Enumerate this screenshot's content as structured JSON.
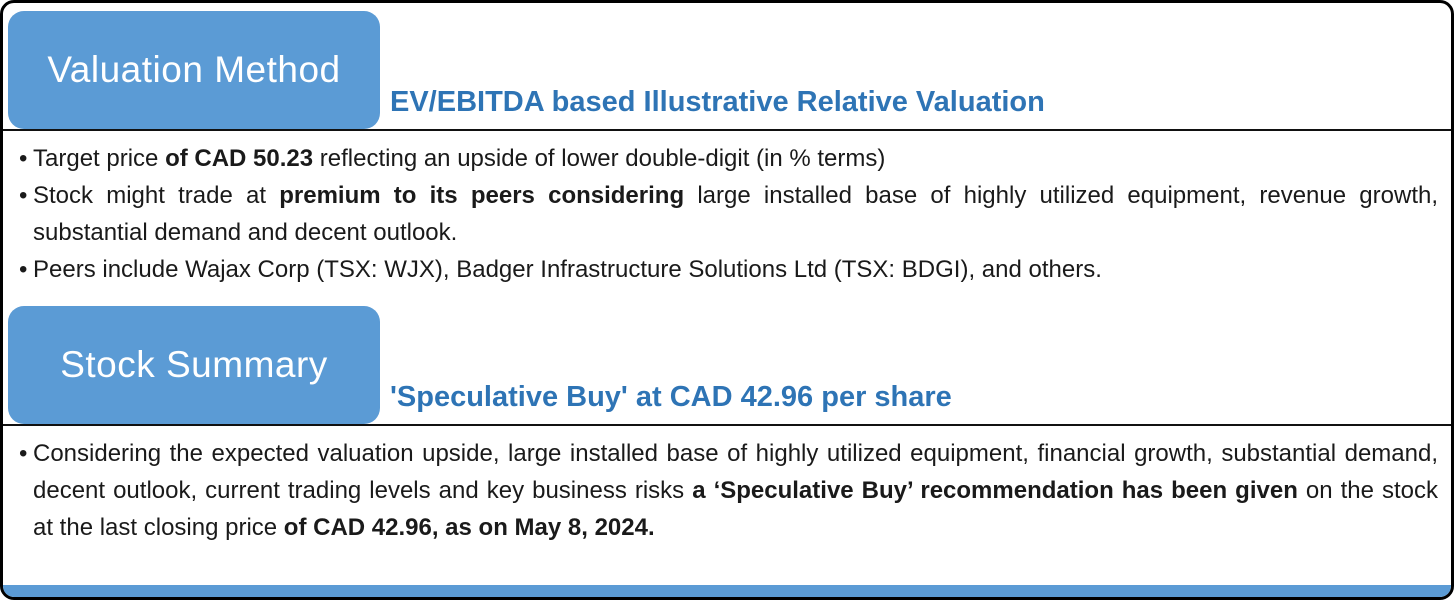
{
  "colors": {
    "accent": "#5B9BD5",
    "heading": "#2E74B5",
    "text": "#1a1a1a"
  },
  "bullet_glyph": "•",
  "sections": [
    {
      "tab_label": "Valuation Method",
      "subtitle": "EV/EBITDA based Illustrative Relative Valuation",
      "bullets": [
        {
          "segments": [
            {
              "text": "Target price ",
              "bold": false
            },
            {
              "text": "of CAD 50.23",
              "bold": true
            },
            {
              "text": " reflecting an upside of lower double-digit (in % terms)",
              "bold": false
            }
          ]
        },
        {
          "segments": [
            {
              "text": "Stock might trade at ",
              "bold": false
            },
            {
              "text": "premium to its peers considering",
              "bold": true
            },
            {
              "text": " large installed base of highly utilized equipment, revenue growth, substantial demand and decent outlook.",
              "bold": false
            }
          ]
        },
        {
          "segments": [
            {
              "text": "Peers include Wajax Corp (TSX: WJX), Badger Infrastructure Solutions Ltd (TSX: BDGI), and others.",
              "bold": false
            }
          ]
        }
      ]
    },
    {
      "tab_label": "Stock Summary",
      "subtitle": "'Speculative Buy' at CAD 42.96 per share",
      "bullets": [
        {
          "segments": [
            {
              "text": "Considering the expected valuation upside, large installed base of highly utilized equipment, financial growth, substantial demand, decent outlook, current trading levels and key business risks ",
              "bold": false
            },
            {
              "text": "a ‘Speculative Buy’ recommendation has been given",
              "bold": true
            },
            {
              "text": " on the stock at the last closing price ",
              "bold": false
            },
            {
              "text": "of CAD 42.96, as on May 8, 2024.",
              "bold": true
            }
          ]
        }
      ]
    }
  ]
}
